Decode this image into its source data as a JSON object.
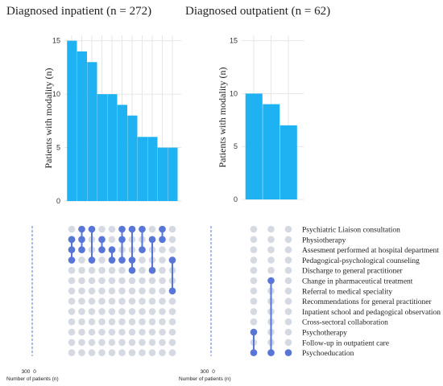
{
  "panels": {
    "inpatient": {
      "title": "Diagnosed inpatient (n = 272)"
    },
    "outpatient": {
      "title": "Diagnosed outpatient (n = 62)"
    }
  },
  "colors": {
    "bar": "#1fb2f3",
    "dot_active": "#5876d8",
    "dot_inactive": "#d5d9e2",
    "grid": "#e6e6e6"
  },
  "chart_data": [
    {
      "type": "bar",
      "ylabel": "Patients with modality (n)",
      "yticks": [
        0,
        5,
        10,
        15
      ],
      "ylim": [
        0,
        15.5
      ],
      "values": [
        15,
        14,
        13,
        10,
        10,
        9,
        8,
        6,
        6,
        5,
        5
      ],
      "combination_rows": [
        [
          1,
          1,
          2,
          3
        ],
        [
          0,
          1,
          2
        ],
        [
          0,
          3
        ],
        [
          1,
          2
        ],
        [
          2,
          3
        ],
        [
          0,
          1,
          3
        ],
        [
          0,
          3,
          4
        ],
        [
          0,
          2
        ],
        [
          1,
          4
        ],
        [
          0,
          1
        ],
        [
          3,
          6
        ]
      ],
      "set_size_label": "Number of patients (n)",
      "set_size_ticks": [
        "300",
        "0"
      ]
    },
    {
      "type": "bar",
      "ylabel": "Patients with modality (n)",
      "yticks": [
        0,
        5,
        10,
        15
      ],
      "ylim": [
        0,
        15.5
      ],
      "values": [
        10,
        9,
        7
      ],
      "combination_rows": [
        [
          12,
          10
        ],
        [
          12,
          5
        ],
        [
          12
        ]
      ],
      "set_size_label": "Number of patients (n)",
      "set_size_ticks": [
        "300",
        "0"
      ],
      "modalities": [
        "Psychiatric Liaison consultation",
        "Physiotherapy",
        "Assesment performed at hospital department",
        "Pedagogical-psychological counseling",
        "Discharge to general practitioner",
        "Change in pharmaceutical treatment",
        "Referral to medical speciality",
        "Recommendations for general practitioner",
        "Inpatient school and pedagogical observation",
        "Cross-sectoral collaboration",
        "Psychotherapy",
        "Follow-up in outpatient care",
        "Psychoeducation"
      ]
    }
  ]
}
